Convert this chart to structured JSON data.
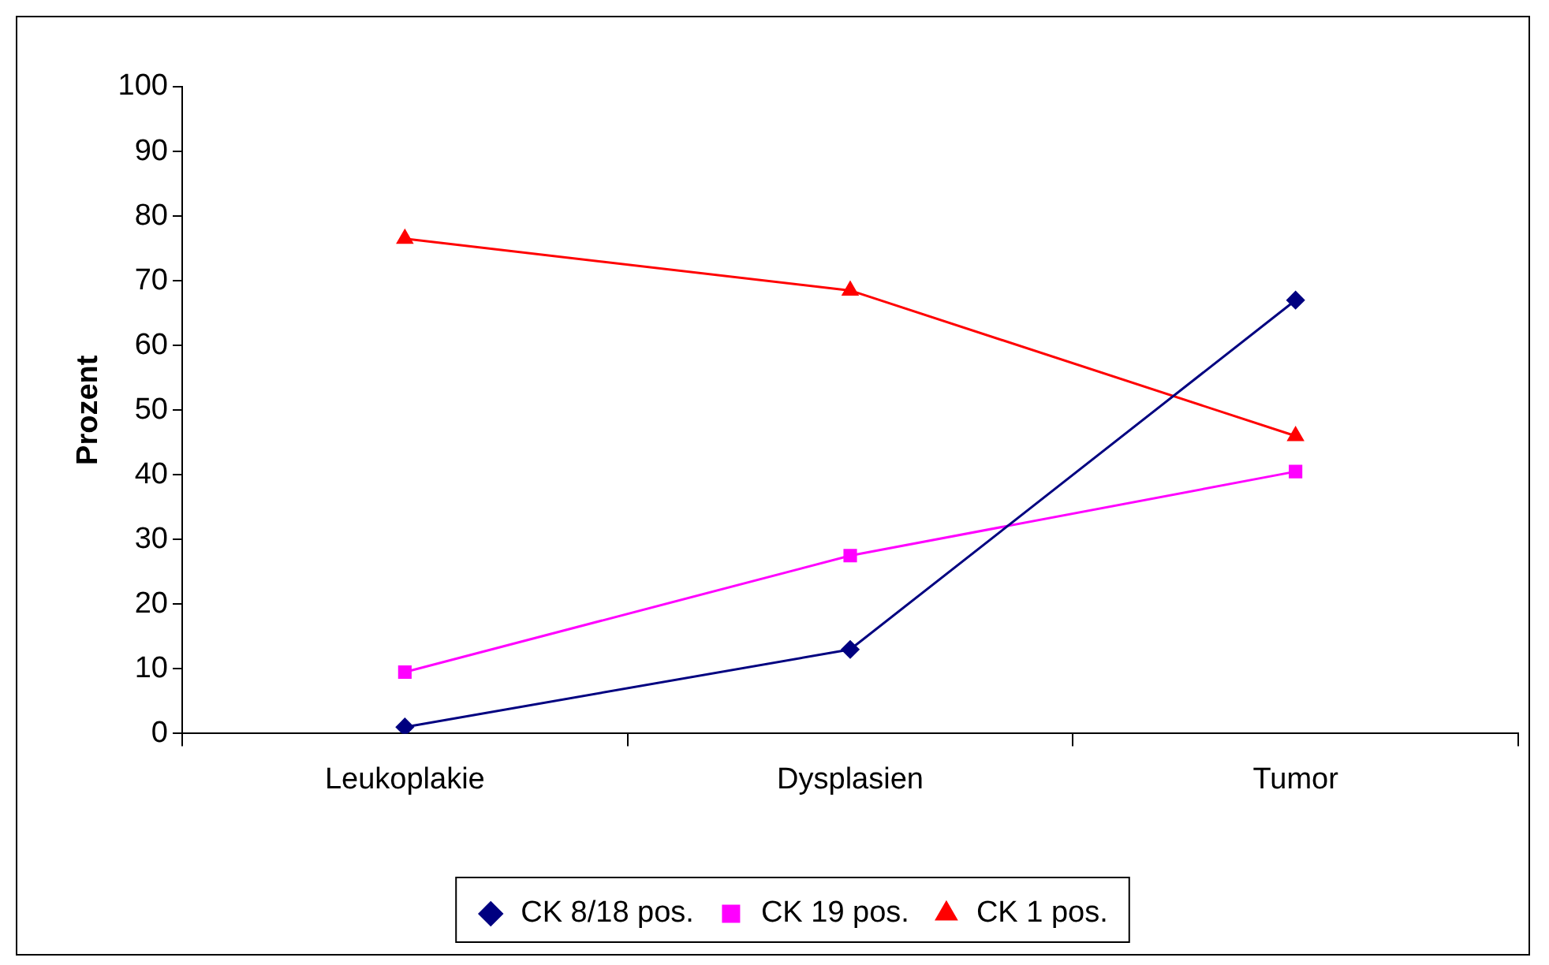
{
  "chart_data": {
    "type": "line",
    "ylabel": "Prozent",
    "categories": [
      "Leukoplakie",
      "Dysplasien",
      "Tumor"
    ],
    "series": [
      {
        "name": "CK 8/18 pos.",
        "color": "#000080",
        "marker": "diamond",
        "values": [
          1,
          13,
          67
        ]
      },
      {
        "name": "CK 19 pos.",
        "color": "#ff00ff",
        "marker": "square",
        "values": [
          9.5,
          27.5,
          40.5
        ]
      },
      {
        "name": "CK 1 pos.",
        "color": "#ff0000",
        "marker": "triangle",
        "values": [
          76.5,
          68.5,
          46
        ]
      }
    ],
    "ylim": [
      0,
      100
    ],
    "yticks": [
      0,
      10,
      20,
      30,
      40,
      50,
      60,
      70,
      80,
      90,
      100
    ],
    "grid": false,
    "legend": "bottom",
    "line_style": "solid"
  }
}
